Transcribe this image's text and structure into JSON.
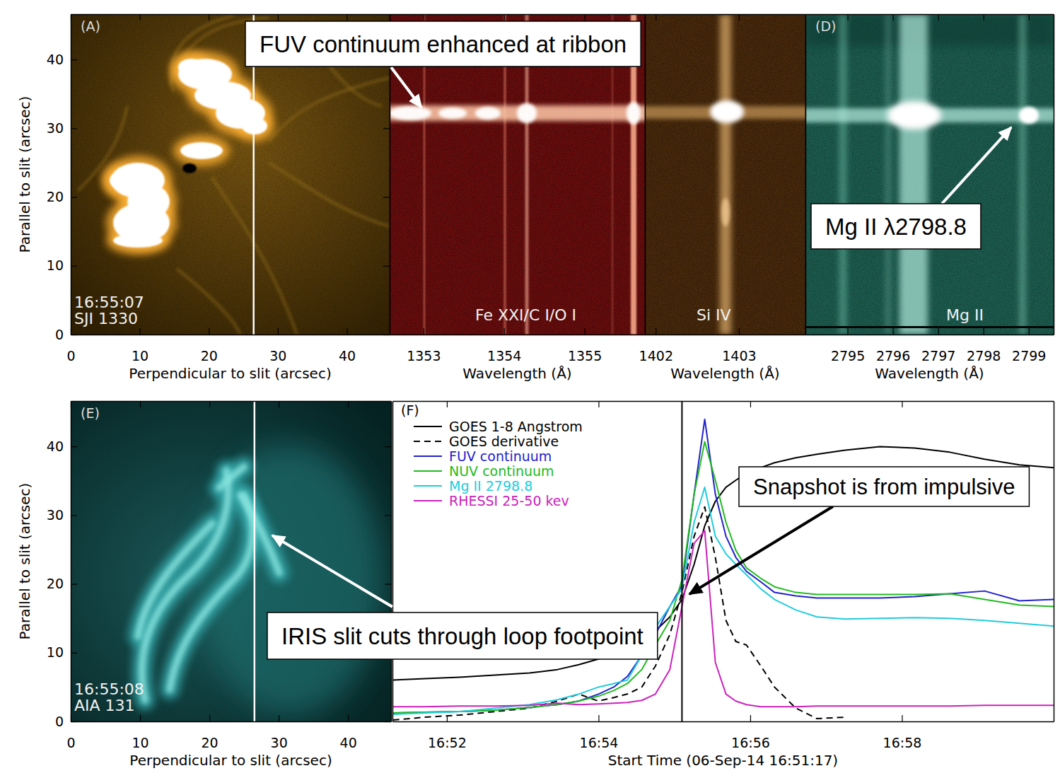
{
  "chart_data": [
    {
      "type": "image",
      "label": "(A)",
      "texts": [
        "16:55:07",
        "SJI 1330"
      ],
      "xlabel": "Perpendicular to slit (arcsec)",
      "ylabel": "Parallel to slit (arcsec)",
      "xlim": [
        0,
        46.2
      ],
      "ylim": [
        0,
        46.6
      ],
      "xticks": [
        0,
        10,
        20,
        30,
        40
      ],
      "yticks": [
        0,
        10,
        20,
        30,
        40
      ],
      "slit_x": 26.5
    },
    {
      "type": "spectrum",
      "texts": [
        "Fe XXI/C I/O I"
      ],
      "xlabel": "Wavelength (Å)",
      "xlim": [
        1352.58,
        1355.75
      ],
      "xticks": [
        1353,
        1354,
        1355
      ],
      "ylim": [
        0,
        46.6
      ],
      "tick_labels": "x"
    },
    {
      "type": "spectrum",
      "texts": [
        "Si IV"
      ],
      "xlabel": "Wavelength (Å)",
      "xlim": [
        1401.87,
        1403.8
      ],
      "xticks": [
        1402,
        1403
      ],
      "ylim": [
        0,
        46.6
      ],
      "tick_labels": "x"
    },
    {
      "type": "spectrum",
      "label": "(D)",
      "texts": [
        "Mg II"
      ],
      "xlabel": "Wavelength (Å)",
      "xlim": [
        2794.07,
        2799.55
      ],
      "xticks": [
        2795,
        2796,
        2797,
        2798,
        2799
      ],
      "ylim": [
        0,
        46.6
      ],
      "tick_labels": "x"
    },
    {
      "type": "image",
      "label": "(E)",
      "texts": [
        "16:55:08",
        "AIA 131"
      ],
      "xlabel": "Perpendicular to slit (arcsec)",
      "ylabel": "Parallel to slit (arcsec)",
      "xlim": [
        0,
        46.2
      ],
      "ylim": [
        0,
        46.6
      ],
      "xticks": [
        0,
        10,
        20,
        30,
        40
      ],
      "yticks": [
        0,
        10,
        20,
        30,
        40
      ],
      "slit_x": 26.5
    },
    {
      "type": "line",
      "label": "(F)",
      "xlabel": "Start Time (06-Sep-14 16:51:17)",
      "x": [
        51.29,
        51.71,
        52.17,
        52.63,
        53.09,
        53.46,
        53.74,
        54.0,
        54.2,
        54.38,
        54.57,
        54.75,
        54.94,
        55.1,
        55.26,
        55.4,
        55.54,
        55.68,
        55.81,
        55.95,
        56.14,
        56.32,
        56.6,
        56.88,
        57.25,
        57.71,
        58.17,
        58.63,
        59.09,
        59.55,
        60.0
      ],
      "xlim": [
        51.283,
        60.0
      ],
      "xticks": [
        {
          "value": 52,
          "label": "16:52"
        },
        {
          "value": 54,
          "label": "16:54"
        },
        {
          "value": 56,
          "label": "16:56"
        },
        {
          "value": 58,
          "label": "16:58"
        }
      ],
      "ylim": [
        0,
        457
      ],
      "tick_labels": "x",
      "legend": "upper left",
      "vline": 55.1,
      "series": [
        {
          "name": "GOES 1-8 Angstrom",
          "color": "#000000",
          "line_style": "solid",
          "values": [
            59,
            61,
            63,
            66,
            69,
            74,
            81,
            89,
            96,
            104,
            116,
            129,
            149,
            174,
            224,
            279,
            314,
            334,
            344,
            354,
            362,
            369,
            376,
            381,
            387,
            392,
            390,
            384,
            374,
            366,
            362
          ]
        },
        {
          "name": "GOES derivative",
          "color": "#000000",
          "line_style": "dashed",
          "values": [
            2,
            6,
            9,
            14,
            19,
            29,
            39,
            29,
            34,
            39,
            49,
            79,
            124,
            184,
            264,
            306,
            234,
            144,
            114,
            109,
            79,
            49,
            19,
            4,
            6,
            null,
            null,
            null,
            null,
            null,
            null
          ]
        },
        {
          "name": "FUV continuum",
          "color": "#2222cc",
          "line_style": "solid",
          "values": [
            12,
            13,
            14,
            16,
            20,
            24,
            29,
            39,
            49,
            64,
            94,
            124,
            164,
            194,
            324,
            431,
            324,
            264,
            234,
            214,
            199,
            184,
            179,
            176,
            176,
            176,
            178,
            182,
            186,
            172,
            174
          ]
        },
        {
          "name": "NUV continuum",
          "color": "#22bb22",
          "line_style": "solid",
          "values": [
            12,
            13,
            14,
            16,
            20,
            24,
            29,
            36,
            44,
            54,
            74,
            109,
            144,
            202,
            324,
            399,
            344,
            284,
            244,
            219,
            204,
            192,
            184,
            181,
            181,
            181,
            181,
            182,
            174,
            166,
            164
          ]
        },
        {
          "name": "Mg II 2798.8",
          "color": "#22ccdd",
          "line_style": "solid",
          "values": [
            10,
            12,
            14,
            19,
            24,
            31,
            39,
            49,
            54,
            59,
            94,
            134,
            164,
            189,
            284,
            334,
            264,
            239,
            224,
            209,
            189,
            174,
            159,
            149,
            146,
            147,
            148,
            147,
            144,
            140,
            136
          ]
        },
        {
          "name": "RHESSI 25-50 kev",
          "color": "#cc22bb",
          "line_style": "solid",
          "values": [
            21,
            21,
            22,
            22,
            23,
            26,
            24,
            25,
            26,
            27,
            30,
            39,
            74,
            164,
            254,
            272,
            84,
            39,
            29,
            24,
            21,
            21,
            21,
            22,
            22,
            22,
            22,
            22,
            23,
            23,
            23
          ]
        }
      ]
    }
  ],
  "annotations": [
    {
      "text": "FUV continuum enhanced at ribbon"
    },
    {
      "text": "Mg II λ2798.8"
    },
    {
      "text": "Snapshot is from impulsive"
    },
    {
      "text": "IRIS slit cuts through loop footpoint"
    }
  ]
}
